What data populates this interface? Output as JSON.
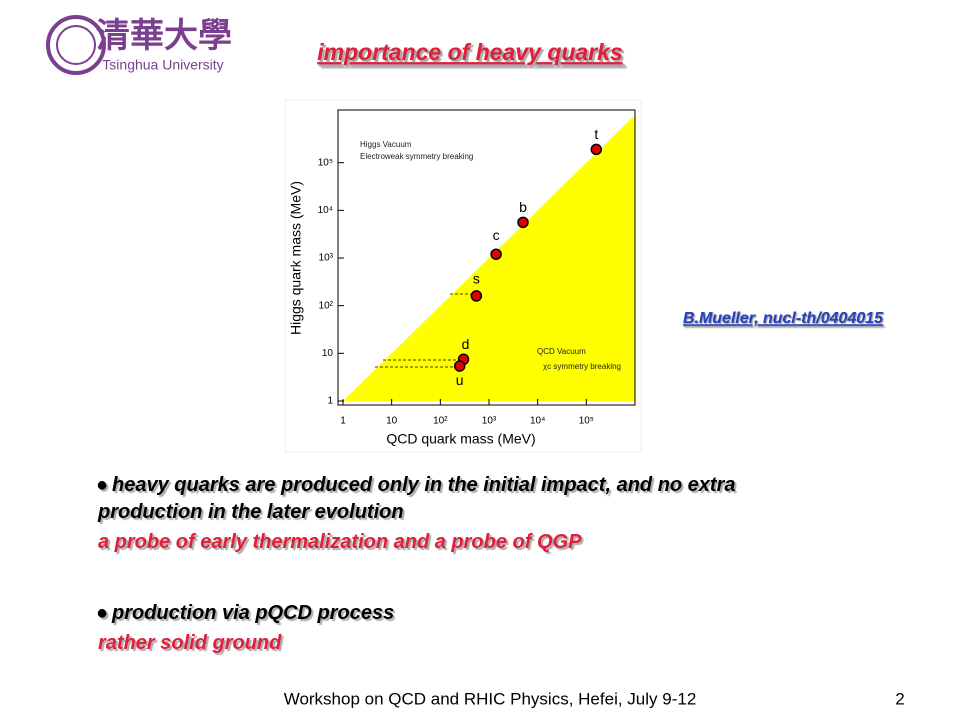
{
  "logo": {
    "chinese": "清華大學",
    "english": "Tsinghua University"
  },
  "title": "importance of heavy quarks",
  "credit": "B.Mueller, nucl-th/0404015",
  "bullets": [
    {
      "lines": [
        "heavy quarks are produced only in the initial impact, and no extra",
        "production in the later evolution"
      ],
      "note": "a probe of early thermalization and a probe of QGP"
    },
    {
      "lines": [
        "production via pQCD process"
      ],
      "note": "rather solid ground"
    }
  ],
  "footer": "Workshop on QCD and RHIC Physics,  Hefei,  July 9-12",
  "page_number": "2",
  "chart_data": {
    "type": "scatter",
    "x_label": "QCD quark mass (MeV)",
    "y_label": "Higgs quark mass (MeV)",
    "annotations": [
      "Higgs Vacuum",
      "Electroweak symmetry breaking",
      "QCD Vacuum",
      "χc symmetry breaking"
    ],
    "point_labels": [
      "t",
      "b",
      "c",
      "s",
      "d",
      "u"
    ],
    "x": [
      160000,
      5000,
      1400,
      550,
      300,
      250
    ],
    "values": [
      190000,
      5600,
      1200,
      160,
      7.5,
      5.4
    ],
    "color": "#e00000",
    "log_x": true,
    "log_y": true,
    "xlim": [
      1,
      1000000
    ],
    "ylim": [
      1,
      1000000
    ],
    "xticks": [
      1,
      10,
      {
        "value": 100,
        "label": "10²"
      },
      {
        "value": 1000,
        "label": "10³"
      },
      {
        "value": 10000,
        "label": "10⁴"
      },
      {
        "value": 100000,
        "label": "10⁵"
      }
    ],
    "yticks": [
      1,
      10,
      {
        "value": 100,
        "label": "10²"
      },
      {
        "value": 1000,
        "label": "10³"
      },
      {
        "value": 10000,
        "label": "10⁴"
      },
      {
        "value": 100000,
        "label": "10⁵"
      }
    ]
  }
}
